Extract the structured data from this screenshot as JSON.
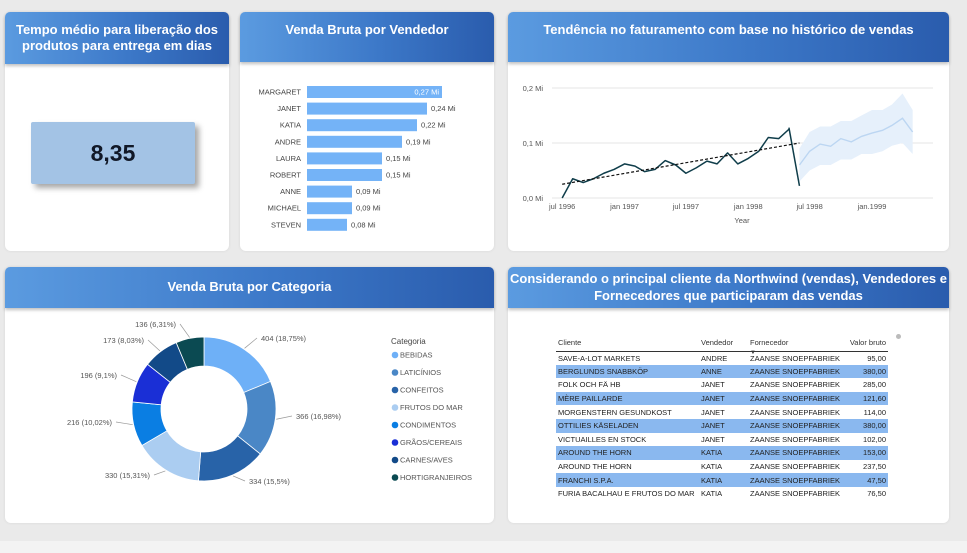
{
  "kpi": {
    "title": "Tempo médio para liberação dos produtos para entrega em dias",
    "value": "8,35"
  },
  "bar_card": {
    "title": "Venda Bruta por Vendedor"
  },
  "line_card": {
    "title": "Tendência no faturamento com base no histórico de vendas"
  },
  "donut_card": {
    "title": "Venda Bruta por Categoria"
  },
  "table_card": {
    "title": "Considerando o principal cliente da Northwind (vendas), Vendedores e Fornecedores que participaram das vendas",
    "columns": [
      "Cliente",
      "Vendedor",
      "Fornecedor",
      "Valor bruto"
    ],
    "rows": [
      [
        "SAVE-A-LOT MARKETS",
        "ANDRE",
        "ZAANSE SNOEPFABRIEK",
        "95,00"
      ],
      [
        "BERGLUNDS SNABBKÖP",
        "ANNE",
        "ZAANSE SNOEPFABRIEK",
        "380,00"
      ],
      [
        "FOLK OCH FÄ HB",
        "JANET",
        "ZAANSE SNOEPFABRIEK",
        "285,00"
      ],
      [
        "MÈRE PAILLARDE",
        "JANET",
        "ZAANSE SNOEPFABRIEK",
        "121,60"
      ],
      [
        "MORGENSTERN GESUNDKOST",
        "JANET",
        "ZAANSE SNOEPFABRIEK",
        "114,00"
      ],
      [
        "OTTILIES KÄSELADEN",
        "JANET",
        "ZAANSE SNOEPFABRIEK",
        "380,00"
      ],
      [
        "VICTUAILLES EN STOCK",
        "JANET",
        "ZAANSE SNOEPFABRIEK",
        "102,00"
      ],
      [
        "AROUND THE HORN",
        "KATIA",
        "ZAANSE SNOEPFABRIEK",
        "153,00"
      ],
      [
        "AROUND THE HORN",
        "KATIA",
        "ZAANSE SNOEPFABRIEK",
        "237,50"
      ],
      [
        "FRANCHI S.P.A.",
        "KATIA",
        "ZAANSE SNOEPFABRIEK",
        "47,50"
      ],
      [
        "FURIA BACALHAU E FRUTOS DO MAR",
        "KATIA",
        "ZAANSE SNOEPFABRIEK",
        "76,50"
      ]
    ]
  },
  "colors": {
    "bar": "#74b3f7",
    "line": "#0f3d4a",
    "trend": "#111111",
    "forecast": "#bcd6f2",
    "forecast_band": "#e6f0fb",
    "highlight_row": "#8ab8ef"
  },
  "chart_data": [
    {
      "type": "bar",
      "orientation": "horizontal",
      "categories": [
        "MARGARET",
        "JANET",
        "KATIA",
        "ANDRE",
        "LAURA",
        "ROBERT",
        "ANNE",
        "MICHAEL",
        "STEVEN"
      ],
      "values": [
        0.27,
        0.24,
        0.22,
        0.19,
        0.15,
        0.15,
        0.09,
        0.09,
        0.08
      ],
      "labels": [
        "0,27 Mi",
        "0,24 Mi",
        "0,22 Mi",
        "0,19 Mi",
        "0,15 Mi",
        "0,15 Mi",
        "0,09 Mi",
        "0,09 Mi",
        "0,08 Mi"
      ],
      "xlim": [
        0,
        0.28
      ]
    },
    {
      "type": "line",
      "series": [
        {
          "x": [
            "1996-07",
            "1996-08",
            "1996-09",
            "1996-10",
            "1996-11",
            "1996-12",
            "1997-01",
            "1997-02",
            "1997-03",
            "1997-04",
            "1997-05",
            "1997-06",
            "1997-07",
            "1997-08",
            "1997-09",
            "1997-10",
            "1997-11",
            "1997-12",
            "1998-01",
            "1998-02",
            "1998-03",
            "1998-04",
            "1998-05"
          ],
          "values": [
            0.0,
            0.035,
            0.028,
            0.035,
            0.045,
            0.052,
            0.062,
            0.058,
            0.048,
            0.052,
            0.068,
            0.06,
            0.045,
            0.055,
            0.067,
            0.062,
            0.082,
            0.062,
            0.072,
            0.085,
            0.11,
            0.108,
            0.125
          ]
        },
        {
          "x": [
            "1998-05",
            "1998-06"
          ],
          "values": [
            0.128,
            0.022
          ]
        },
        {
          "x": [
            "1998-06",
            "1998-07",
            "1998-08",
            "1998-09",
            "1998-10",
            "1998-11",
            "1998-12",
            "1999-01",
            "1999-02",
            "1999-03",
            "1999-04",
            "1999-05"
          ],
          "values": [
            0.06,
            0.085,
            0.098,
            0.094,
            0.108,
            0.102,
            0.112,
            0.118,
            0.123,
            0.132,
            0.145,
            0.12
          ],
          "band_upper": [
            0.09,
            0.12,
            0.13,
            0.13,
            0.14,
            0.14,
            0.15,
            0.16,
            0.16,
            0.17,
            0.19,
            0.16
          ],
          "band_lower": [
            0.03,
            0.05,
            0.06,
            0.06,
            0.07,
            0.07,
            0.08,
            0.08,
            0.085,
            0.095,
            0.1,
            0.08
          ]
        }
      ],
      "trend": {
        "x": [
          "1996-07",
          "1998-06"
        ],
        "values": [
          0.025,
          0.1
        ]
      },
      "xticks": [
        "jul 1996",
        "jan 1997",
        "jul 1997",
        "jan 1998",
        "jul 1998",
        "jan.1999"
      ],
      "yticks": [
        "0,0 Mi",
        "0,1 Mi",
        "0,2 Mi"
      ],
      "ylim": [
        0,
        0.2
      ],
      "xlabel": "Year",
      "grid": true
    },
    {
      "type": "pie",
      "donut": true,
      "legend_title": "Categoria",
      "categories": [
        "BEBIDAS",
        "LATICÍNIOS",
        "CONFEITOS",
        "FRUTOS DO MAR",
        "CONDIMENTOS",
        "GRÃOS/CEREAIS",
        "CARNES/AVES",
        "HORTIGRANJEIROS"
      ],
      "values": [
        404,
        366,
        334,
        330,
        216,
        196,
        173,
        136
      ],
      "labels": [
        "404 (18,75%)",
        "366 (16,98%)",
        "334 (15,5%)",
        "330 (15,31%)",
        "216 (10,02%)",
        "196 (9,1%)",
        "173 (8,03%)",
        "136 (6,31%)"
      ],
      "colors": [
        "#6eb0f7",
        "#4a87c6",
        "#2863a8",
        "#abcdf1",
        "#0a7ee3",
        "#1a2fd6",
        "#124a88",
        "#0b4a52"
      ],
      "legend_position": "right"
    }
  ]
}
